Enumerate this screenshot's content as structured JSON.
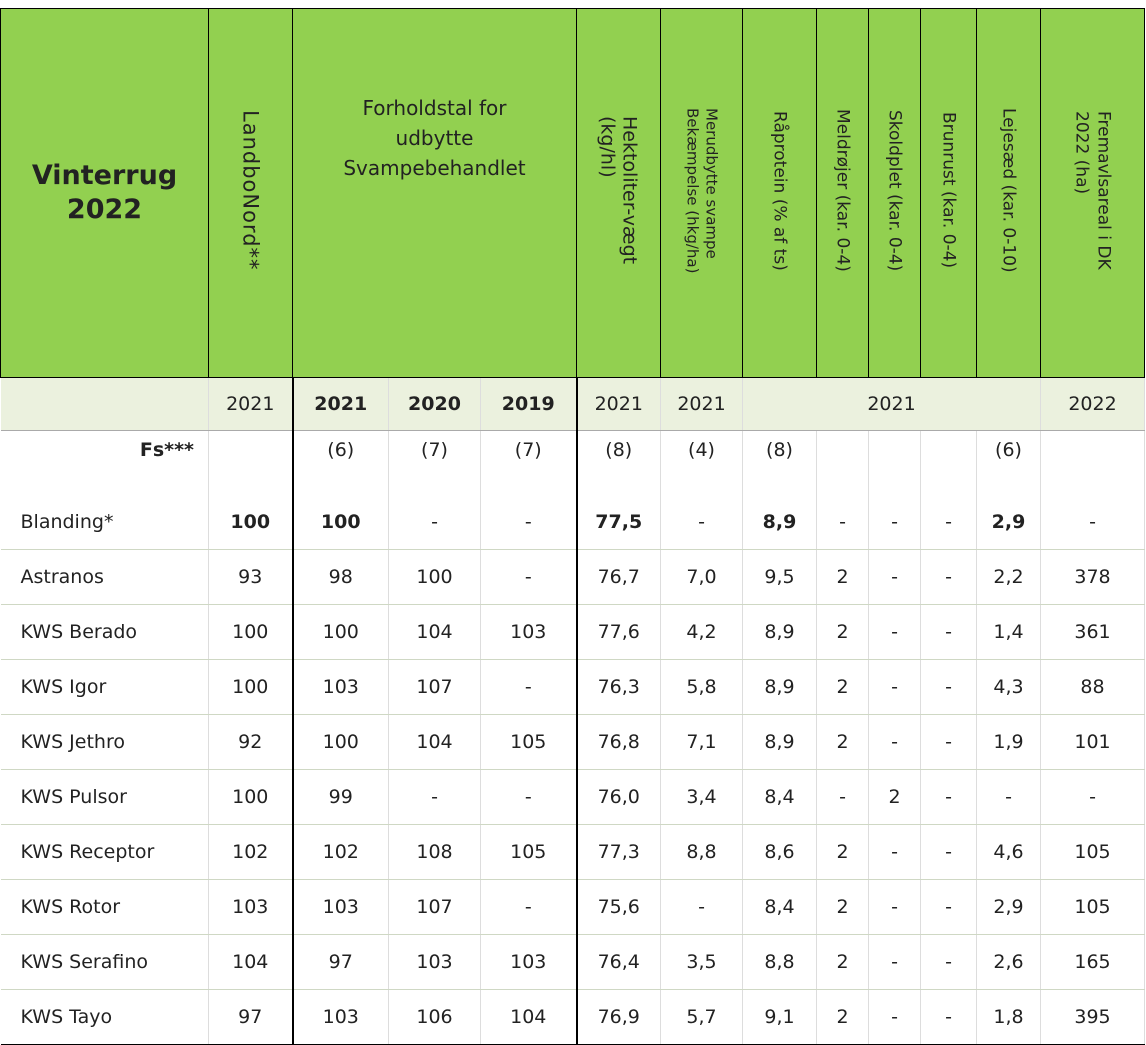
{
  "header": {
    "title_line1": "Vinterrug",
    "title_line2": "2022",
    "landbonord": "LandboNord**",
    "forhold_line1": "Forholdstal for",
    "forhold_line2": "udbytte",
    "forhold_line3": "Svampebehandlet",
    "hektoliter_line1": "Hektoliter-vægt",
    "hektoliter_line2": "(kg/hl)",
    "merudbytte_line1": "Merudbytte svampe",
    "merudbytte_line2": "Bekæmpelse (hkg/ha)",
    "raprotein": "Råprotein (% af ts)",
    "meldrojer": "Meldrøjer (kar. 0-4)",
    "skoldplet": "Skoldplet (kar. 0-4)",
    "brunrust": "Brunrust (kar. 0-4)",
    "lejesaed": "Lejesæd (kar. 0-10)",
    "fremavl_line1": "Fremavlsareal i DK",
    "fremavl_line2": "2022 (ha)"
  },
  "years": {
    "landbonord": "2021",
    "f2021": "2021",
    "f2020": "2020",
    "f2019": "2019",
    "hekto": "2021",
    "merud": "2021",
    "group": "2021",
    "fremavl": "2022"
  },
  "fs": {
    "label": "Fs***",
    "f2021": "(6)",
    "f2020": "(7)",
    "f2019": "(7)",
    "hekto": "(8)",
    "merud": "(4)",
    "raprotein": "(8)",
    "lejesaed": "(6)"
  },
  "rows": [
    {
      "name": "Blanding*",
      "landbo": "100",
      "f2021": "100",
      "f2020": "-",
      "f2019": "-",
      "hekto": "77,5",
      "merud": "-",
      "rap": "8,9",
      "meld": "-",
      "skold": "-",
      "brun": "-",
      "leje": "2,9",
      "frem": "-"
    },
    {
      "name": "Astranos",
      "landbo": "93",
      "f2021": "98",
      "f2020": "100",
      "f2019": "-",
      "hekto": "76,7",
      "merud": "7,0",
      "rap": "9,5",
      "meld": "2",
      "skold": "-",
      "brun": "-",
      "leje": "2,2",
      "frem": "378"
    },
    {
      "name": "KWS Berado",
      "landbo": "100",
      "f2021": "100",
      "f2020": "104",
      "f2019": "103",
      "hekto": "77,6",
      "merud": "4,2",
      "rap": "8,9",
      "meld": "2",
      "skold": "-",
      "brun": "-",
      "leje": "1,4",
      "frem": "361"
    },
    {
      "name": "KWS Igor",
      "landbo": "100",
      "f2021": "103",
      "f2020": "107",
      "f2019": "-",
      "hekto": "76,3",
      "merud": "5,8",
      "rap": "8,9",
      "meld": "2",
      "skold": "-",
      "brun": "-",
      "leje": "4,3",
      "frem": "88"
    },
    {
      "name": "KWS Jethro",
      "landbo": "92",
      "f2021": "100",
      "f2020": "104",
      "f2019": "105",
      "hekto": "76,8",
      "merud": "7,1",
      "rap": "8,9",
      "meld": "2",
      "skold": "-",
      "brun": "-",
      "leje": "1,9",
      "frem": "101"
    },
    {
      "name": "KWS Pulsor",
      "landbo": "100",
      "f2021": "99",
      "f2020": "-",
      "f2019": "-",
      "hekto": "76,0",
      "merud": "3,4",
      "rap": "8,4",
      "meld": "-",
      "skold": "2",
      "brun": "-",
      "leje": "-",
      "frem": "-"
    },
    {
      "name": "KWS Receptor",
      "landbo": "102",
      "f2021": "102",
      "f2020": "108",
      "f2019": "105",
      "hekto": "77,3",
      "merud": "8,8",
      "rap": "8,6",
      "meld": "2",
      "skold": "-",
      "brun": "-",
      "leje": "4,6",
      "frem": "105"
    },
    {
      "name": "KWS Rotor",
      "landbo": "103",
      "f2021": "103",
      "f2020": "107",
      "f2019": "-",
      "hekto": "75,6",
      "merud": "-",
      "rap": "8,4",
      "meld": "2",
      "skold": "-",
      "brun": "-",
      "leje": "2,9",
      "frem": "105"
    },
    {
      "name": "KWS Serafino",
      "landbo": "104",
      "f2021": "97",
      "f2020": "103",
      "f2019": "103",
      "hekto": "76,4",
      "merud": "3,5",
      "rap": "8,8",
      "meld": "2",
      "skold": "-",
      "brun": "-",
      "leje": "2,6",
      "frem": "165"
    },
    {
      "name": "KWS Tayo",
      "landbo": "97",
      "f2021": "103",
      "f2020": "106",
      "f2019": "104",
      "hekto": "76,9",
      "merud": "5,7",
      "rap": "9,1",
      "meld": "2",
      "skold": "-",
      "brun": "-",
      "leje": "1,8",
      "frem": "395"
    }
  ],
  "colors": {
    "header_green": "#92d050",
    "year_row": "#ebf1de"
  }
}
